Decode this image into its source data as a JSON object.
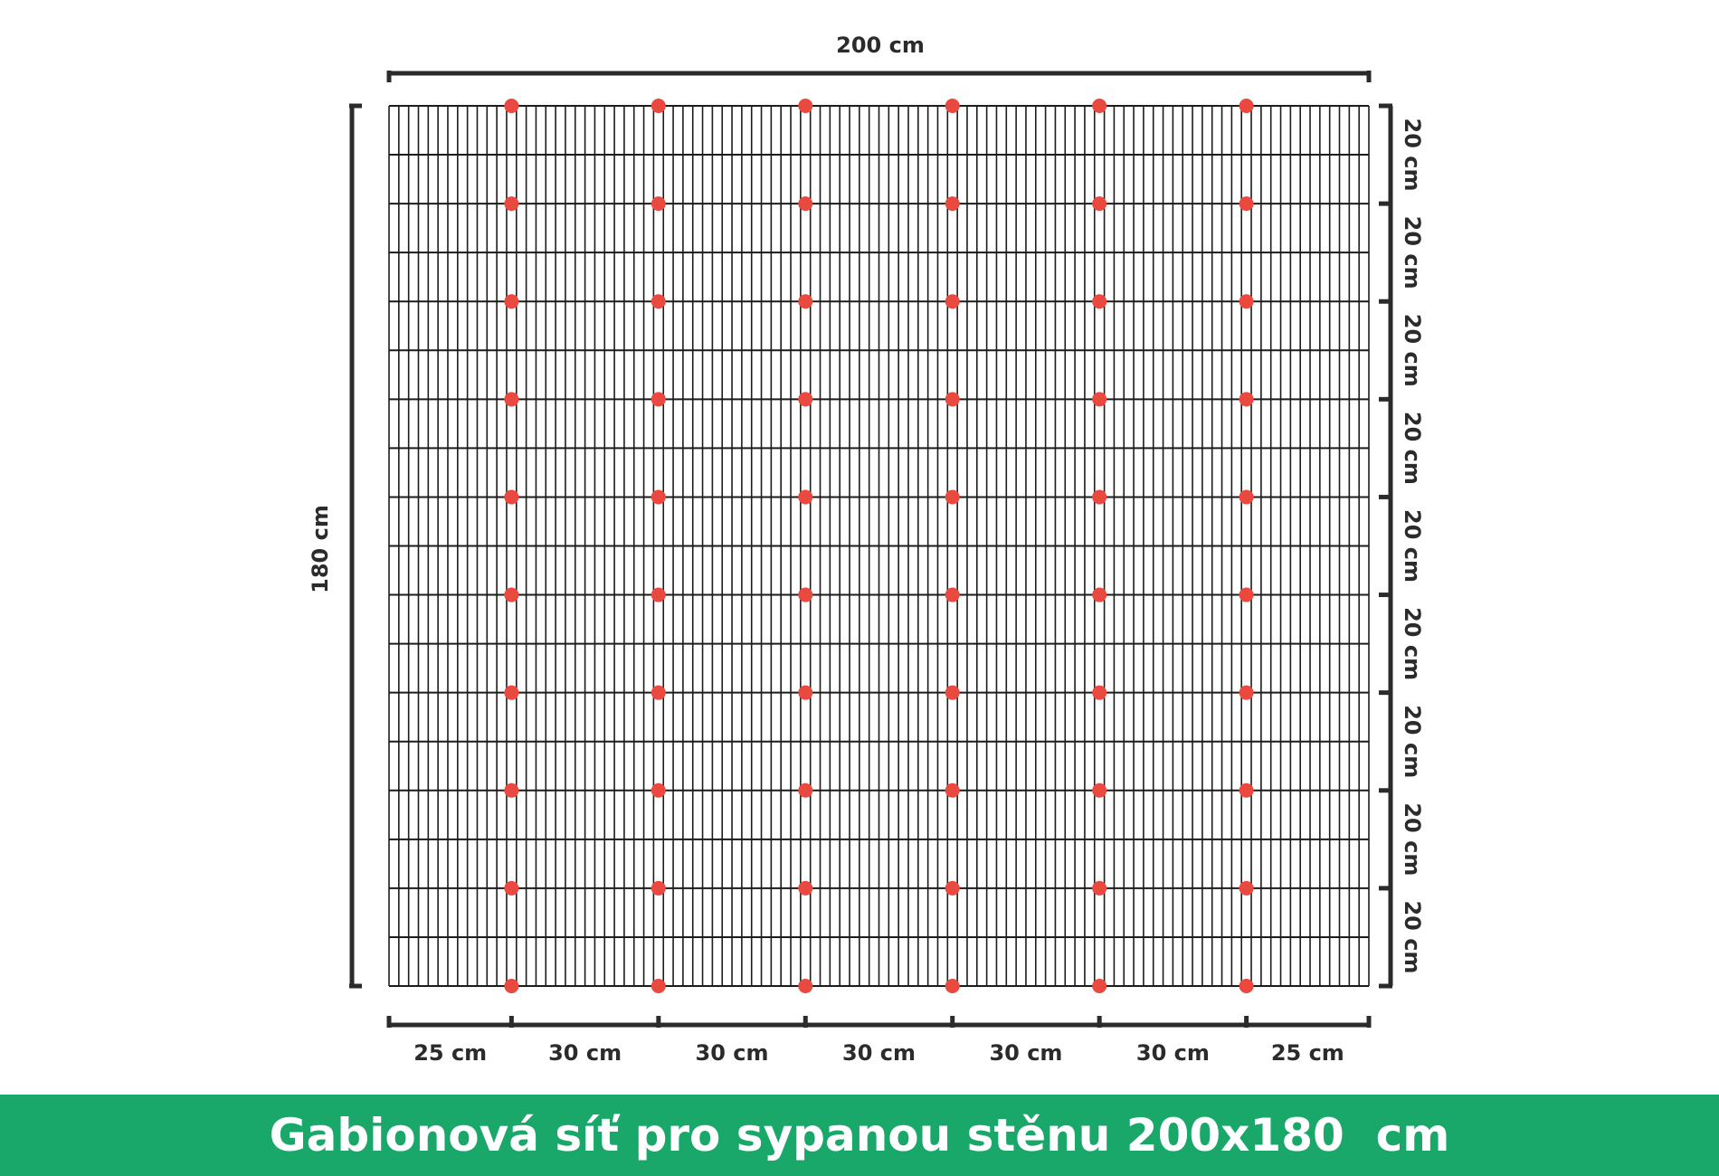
{
  "diagram": {
    "width_label": "200 cm",
    "height_label": "180 cm",
    "right_segments": [
      "20 cm",
      "20 cm",
      "20 cm",
      "20 cm",
      "20 cm",
      "20 cm",
      "20 cm",
      "20 cm",
      "20 cm"
    ],
    "bottom_segments": [
      "25 cm",
      "30 cm",
      "30 cm",
      "30 cm",
      "30 cm",
      "30 cm",
      "25 cm"
    ],
    "mesh": {
      "vertical_wire_count": 101,
      "horizontal_wire_count": 19,
      "marker_columns": 6,
      "marker_rows": 10
    },
    "colors": {
      "wire": "#1c1c1c",
      "marker": "#e9493f",
      "bracket": "#2b2b2b"
    }
  },
  "caption": {
    "text": "Gabionová síť pro sypanou stěnu 200x180  cm",
    "background": "#1aa86a"
  }
}
